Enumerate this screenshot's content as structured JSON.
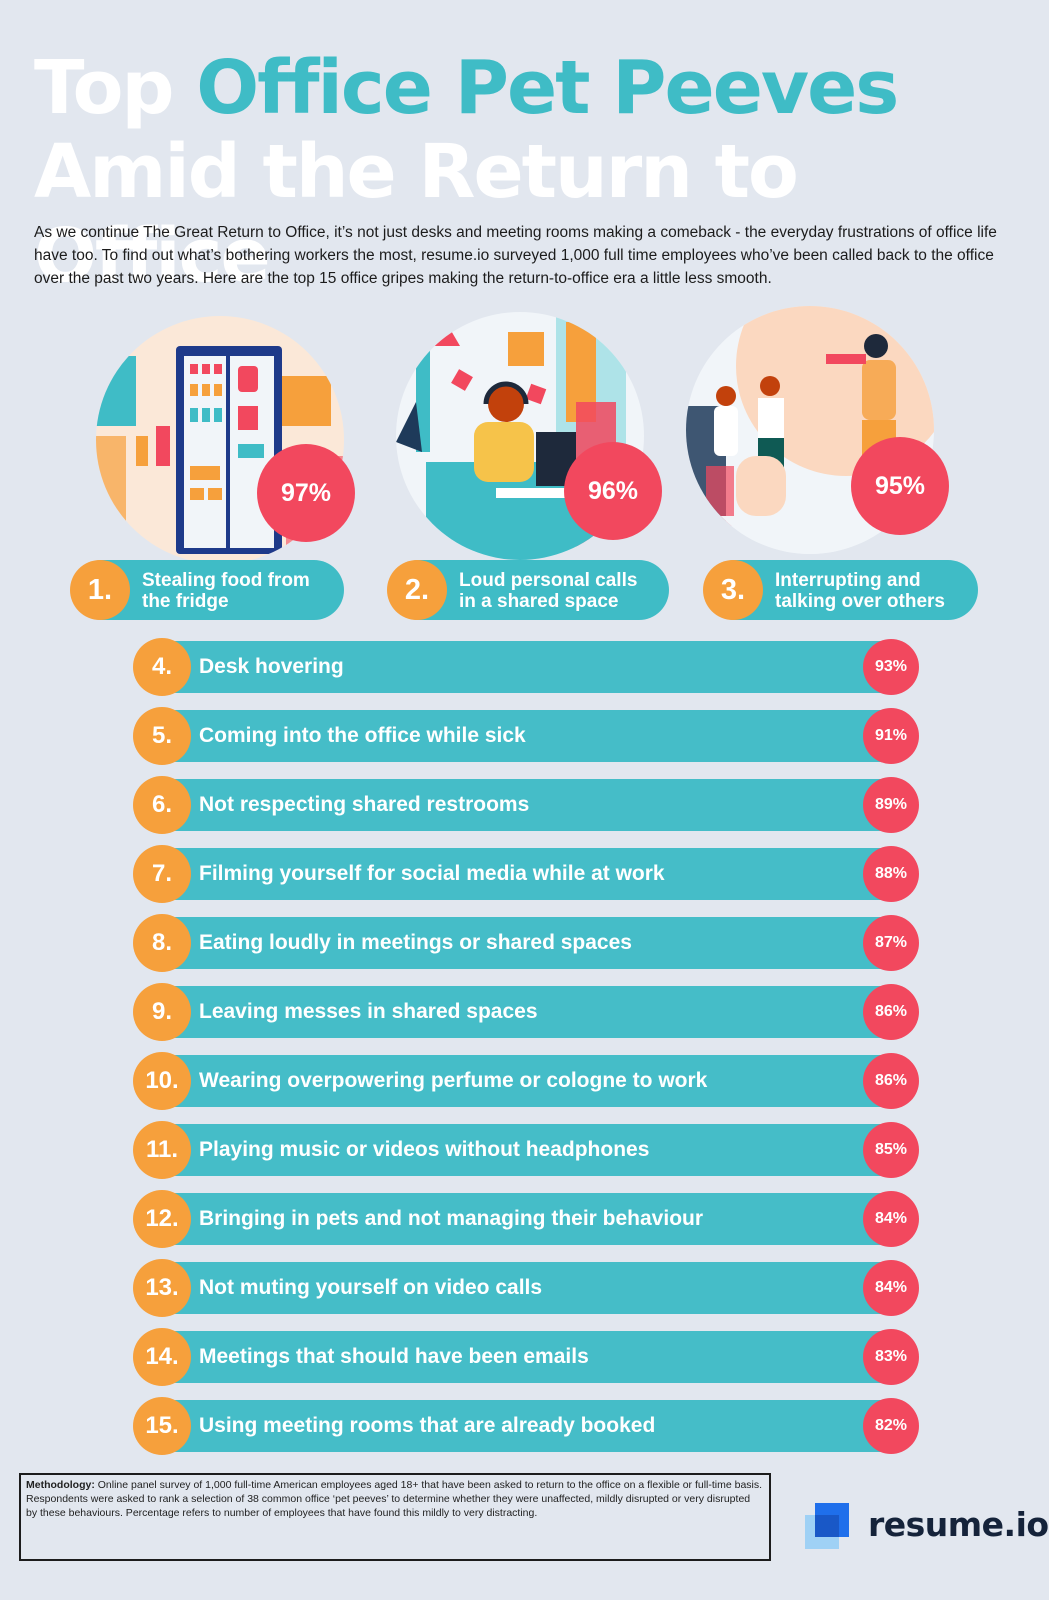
{
  "title": {
    "part1": "Top ",
    "highlight": "Office Pet Peeves",
    "part2": " Amid the Return to Office"
  },
  "intro": "As we continue The Great Return to Office, it’s not just desks and meeting rooms making a comeback - the everyday frustrations of office life have too. To find out what’s bothering workers the most, resume.io surveyed 1,000 full time employees who’ve been called back to the office over the past two years. Here are the top 15 office gripes making the return-to-office era a little less smooth.",
  "top3": [
    {
      "rank": "1.",
      "line1": "Stealing food from",
      "line2": "the fridge",
      "pct": "97%"
    },
    {
      "rank": "2.",
      "line1": "Loud personal calls",
      "line2": "in a shared space",
      "pct": "96%"
    },
    {
      "rank": "3.",
      "line1": "Interrupting and",
      "line2": "talking over others",
      "pct": "95%"
    }
  ],
  "list": [
    {
      "rank": "4.",
      "label": "Desk hovering",
      "pct": "93%"
    },
    {
      "rank": "5.",
      "label": "Coming into the office while sick",
      "pct": "91%"
    },
    {
      "rank": "6.",
      "label": "Not respecting shared restrooms",
      "pct": "89%"
    },
    {
      "rank": "7.",
      "label": "Filming yourself for social media while at work",
      "pct": "88%"
    },
    {
      "rank": "8.",
      "label": "Eating loudly in meetings or shared spaces",
      "pct": "87%"
    },
    {
      "rank": "9.",
      "label": "Leaving messes in shared spaces",
      "pct": "86%"
    },
    {
      "rank": "10.",
      "label": "Wearing overpowering perfume or cologne to work",
      "pct": "86%"
    },
    {
      "rank": "11.",
      "label": "Playing music or videos without headphones",
      "pct": "85%"
    },
    {
      "rank": "12.",
      "label": "Bringing in pets and not managing their behaviour",
      "pct": "84%"
    },
    {
      "rank": "13.",
      "label": "Not muting yourself on video calls",
      "pct": "84%"
    },
    {
      "rank": "14.",
      "label": "Meetings that should have been emails",
      "pct": "83%"
    },
    {
      "rank": "15.",
      "label": "Using meeting rooms that are already booked",
      "pct": "82%"
    }
  ],
  "methodology": {
    "label": "Methodology:",
    "text": " Online panel survey of 1,000 full-time American employees aged 18+ that have been asked to return to the office on a flexible or full-time basis. Respondents were asked to rank a selection of 38 common office ‘pet peeves’ to determine whether they were unaffected, mildly disrupted or very disrupted by these behaviours. Percentage refers to number of employees that have found this mildly to very distracting."
  },
  "brand": "resume.io",
  "colors": {
    "background": "#e2e7ef",
    "teal": "#3fbcc6",
    "orange": "#f6a03c",
    "red": "#f2485e",
    "navy": "#15233a"
  }
}
